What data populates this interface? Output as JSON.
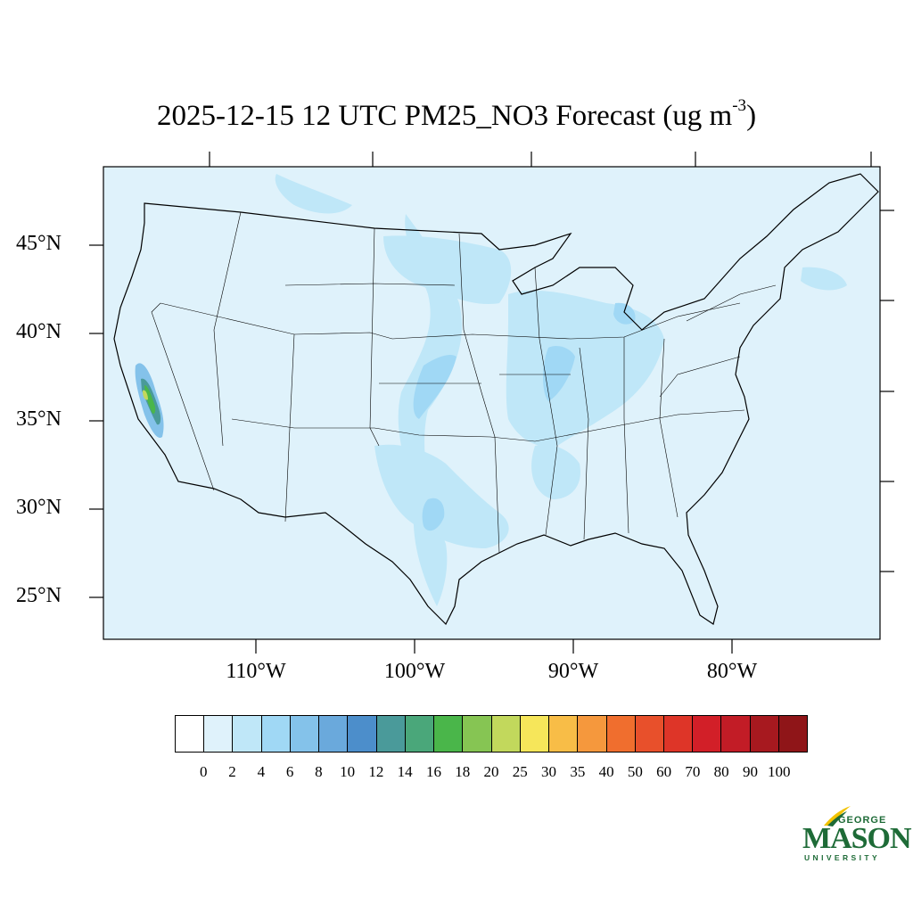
{
  "title": {
    "main": "2025-12-15 12 UTC PM25_NO3 Forecast (ug m",
    "superscript": "-3",
    "close": ")"
  },
  "map": {
    "lat_labels": [
      "45°N",
      "40°N",
      "35°N",
      "30°N",
      "25°N"
    ],
    "lon_labels": [
      "110°W",
      "100°W",
      "90°W",
      "80°W"
    ],
    "background_color": "#dff2fb",
    "line_color": "#000000"
  },
  "colorbar": {
    "labels": [
      "0",
      "2",
      "4",
      "6",
      "8",
      "10",
      "12",
      "14",
      "16",
      "18",
      "20",
      "25",
      "30",
      "35",
      "40",
      "50",
      "60",
      "70",
      "80",
      "90",
      "100"
    ],
    "colors": [
      "#ffffff",
      "#dff2fb",
      "#bfe7f8",
      "#a0d8f5",
      "#84c2ea",
      "#6aa9dc",
      "#4c8ecb",
      "#4a9a9a",
      "#4aa77a",
      "#4ab64a",
      "#86c553",
      "#c2d85c",
      "#f6e65a",
      "#f8bd47",
      "#f5983d",
      "#f06e2e",
      "#e8502b",
      "#de3528",
      "#d21f28",
      "#c21c26",
      "#a7191f",
      "#8f1518"
    ]
  },
  "logo": {
    "line1": "GEORGE",
    "line2": "MASON",
    "line3": "UNIVERSITY",
    "color": "#1e6b37",
    "accent": "#f2c300"
  }
}
